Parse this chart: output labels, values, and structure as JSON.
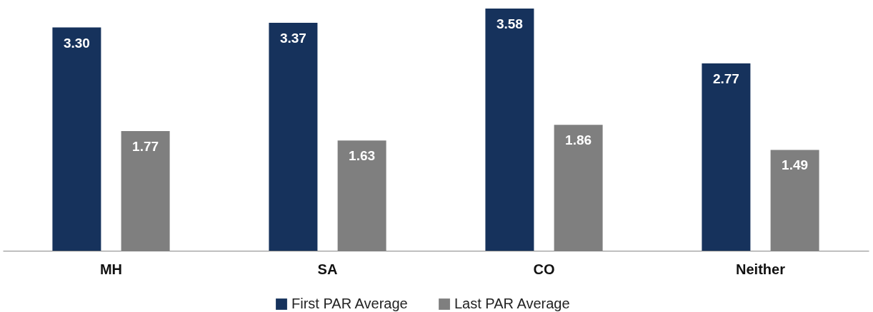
{
  "chart_data": {
    "type": "bar",
    "categories": [
      "MH",
      "SA",
      "CO",
      "Neither"
    ],
    "series": [
      {
        "name": "First PAR Average",
        "color": "#16325c",
        "values": [
          3.3,
          3.37,
          3.58,
          2.77
        ],
        "value_labels": [
          "3.30",
          "3.37",
          "3.58",
          "2.77"
        ]
      },
      {
        "name": "Last PAR Average",
        "color": "#7f7f7f",
        "values": [
          1.77,
          1.63,
          1.86,
          1.49
        ],
        "value_labels": [
          "1.77",
          "1.63",
          "1.86",
          "1.49"
        ]
      }
    ],
    "legend": "bottom"
  }
}
